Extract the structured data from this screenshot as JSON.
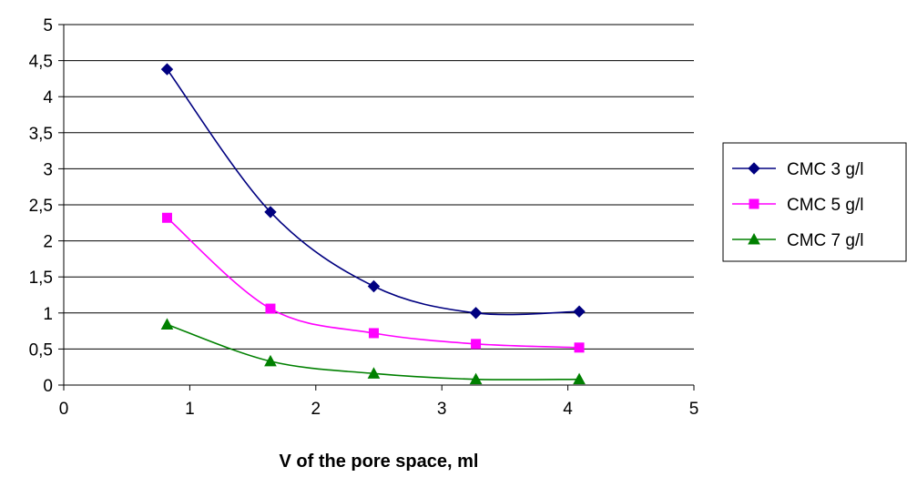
{
  "chart_data": {
    "type": "line",
    "title": "",
    "xlabel": "V of the pore space, ml",
    "ylabel": "",
    "xlim": [
      0,
      5
    ],
    "ylim": [
      0,
      5
    ],
    "xticks": [
      0,
      1,
      2,
      3,
      4,
      5
    ],
    "xtick_labels": [
      "0",
      "1",
      "2",
      "3",
      "4",
      "5"
    ],
    "yticks": [
      0,
      0.5,
      1,
      1.5,
      2,
      2.5,
      3,
      3.5,
      4,
      4.5,
      5
    ],
    "ytick_labels": [
      "0",
      "0,5",
      "1",
      "1,5",
      "2",
      "2,5",
      "3",
      "3,5",
      "4",
      "4,5",
      "5"
    ],
    "grid": "horizontal",
    "legend_position": "right",
    "smooth": true,
    "series": [
      {
        "name": "CMC 3 g/l",
        "color": "#000080",
        "marker": "diamond",
        "x": [
          0.82,
          1.64,
          2.46,
          3.27,
          4.09
        ],
        "y": [
          4.38,
          2.4,
          1.37,
          1.0,
          1.02
        ]
      },
      {
        "name": "CMC 5 g/l",
        "color": "#ff00ff",
        "marker": "square",
        "x": [
          0.82,
          1.64,
          2.46,
          3.27,
          4.09
        ],
        "y": [
          2.32,
          1.06,
          0.72,
          0.57,
          0.52
        ]
      },
      {
        "name": "CMC 7 g/l",
        "color": "#008000",
        "marker": "triangle",
        "x": [
          0.82,
          1.64,
          2.46,
          3.27,
          4.09
        ],
        "y": [
          0.84,
          0.33,
          0.16,
          0.08,
          0.08
        ]
      }
    ]
  }
}
